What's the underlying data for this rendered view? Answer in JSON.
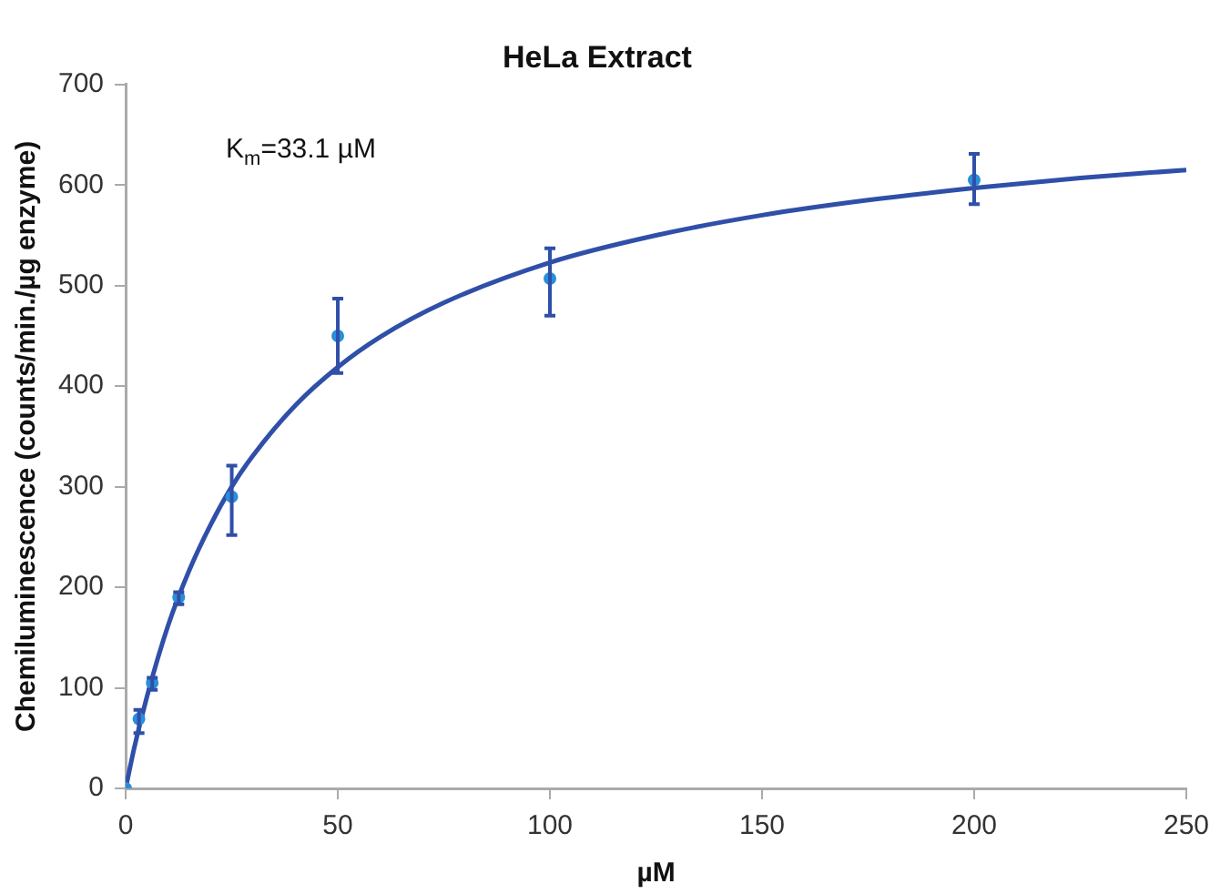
{
  "chart_data": {
    "type": "scatter",
    "title": "HeLa Extract",
    "xlabel": "µM",
    "ylabel": "Chemiluminescence (counts/min./µg enzyme)",
    "annotations": [
      "K$_{m}$=33.1 µM"
    ],
    "series": [
      {
        "type": "scatter",
        "color": "#2a8fd8",
        "x": [
          0,
          3.125,
          6.25,
          12.5,
          25,
          50,
          100,
          200
        ],
        "values": [
          0,
          69,
          105,
          190,
          290,
          450,
          507,
          605
        ],
        "errors": [
          null,
          [
            55,
            78
          ],
          [
            98,
            110
          ],
          [
            183,
            195
          ],
          [
            252,
            321
          ],
          [
            413,
            487
          ],
          [
            470,
            537
          ],
          [
            581,
            631
          ]
        ],
        "marker": "circle"
      },
      {
        "type": "line",
        "color": "#2f4fa8",
        "x": [
          0,
          2,
          5,
          10,
          15,
          20,
          25,
          30,
          40,
          50,
          60,
          75,
          100,
          125,
          150,
          175,
          200,
          225,
          250
        ],
        "values": [
          0,
          40,
          91,
          162,
          217,
          262,
          300,
          331,
          381,
          419,
          449,
          483,
          523,
          550,
          570,
          585,
          597,
          607,
          615
        ],
        "marker": "none"
      }
    ],
    "xlim": [
      0,
      250
    ],
    "xticks": [
      0,
      50,
      100,
      150,
      200,
      250
    ],
    "ylim": [
      0,
      700
    ],
    "yticks": [
      0,
      100,
      200,
      300,
      400,
      500,
      600,
      700
    ],
    "grid": false,
    "legend": false
  }
}
